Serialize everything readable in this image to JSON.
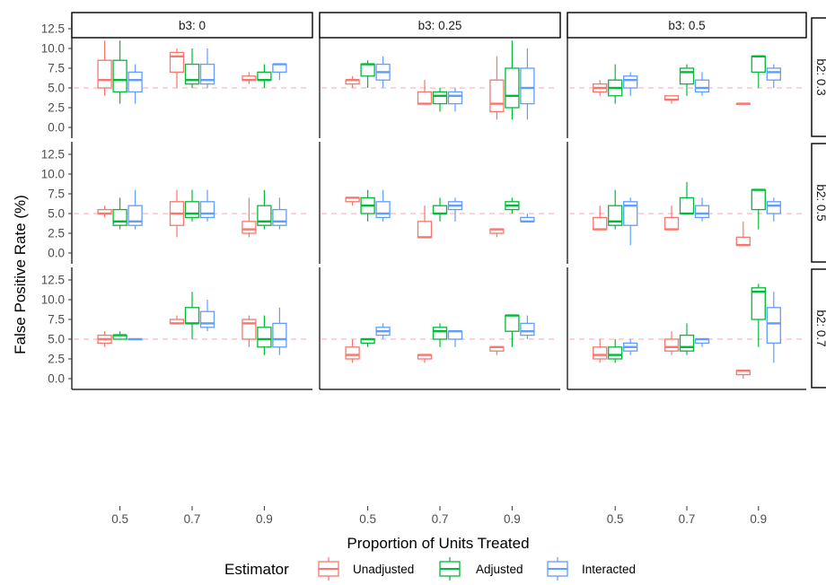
{
  "chart_data": {
    "type": "boxplot",
    "xlabel": "Proportion of Units Treated",
    "ylabel": "False Positive Rate (%)",
    "x_categories": [
      "0.5",
      "0.7",
      "0.9"
    ],
    "y_ticks": [
      "0.0",
      "2.5",
      "5.0",
      "7.5",
      "10.0",
      "12.5"
    ],
    "ylim": [
      0,
      12.5
    ],
    "reference_line": 5.0,
    "col_facets": [
      "b3: 0",
      "b3: 0.25",
      "b3: 0.5"
    ],
    "row_facets": [
      "b2: 0.3",
      "b2: 0.5",
      "b2: 0.7"
    ],
    "legend": {
      "title": "Estimator",
      "placement": "bottom",
      "items": [
        "Unadjusted",
        "Adjusted",
        "Interacted"
      ]
    },
    "colors": {
      "Unadjusted": "#F8766D",
      "Adjusted": "#00BA38",
      "Interacted": "#619CFF",
      "reference": "#FFB6C1"
    },
    "series": [
      "Unadjusted",
      "Adjusted",
      "Interacted"
    ],
    "boxes": [
      [
        [
          [
            [
              4,
              5,
              6,
              8.5,
              11
            ],
            [
              3,
              4.5,
              6,
              8.5,
              11
            ],
            [
              3,
              4.5,
              6,
              7,
              8
            ]
          ],
          [
            [
              5,
              7,
              9,
              9.5,
              10
            ],
            [
              5,
              5.5,
              6,
              8,
              10
            ],
            [
              5,
              5.5,
              6,
              8,
              10
            ]
          ],
          [
            [
              5.5,
              6,
              6,
              6.5,
              7
            ],
            [
              5,
              6,
              6,
              7,
              8
            ],
            [
              6,
              7,
              8,
              8,
              8
            ]
          ]
        ],
        [
          [
            [
              5,
              5.5,
              6,
              6,
              6.5
            ],
            [
              5,
              6.5,
              8,
              8,
              8.5
            ],
            [
              5,
              6,
              7,
              8,
              9
            ]
          ],
          [
            [
              3,
              3,
              3,
              4.5,
              6
            ],
            [
              2,
              3,
              4,
              4.5,
              5
            ],
            [
              2,
              3,
              4,
              4.5,
              5
            ]
          ],
          [
            [
              1,
              2,
              3,
              6,
              9
            ],
            [
              1,
              2.5,
              4,
              7.5,
              11
            ],
            [
              1,
              3,
              5,
              7.5,
              10
            ]
          ]
        ],
        [
          [
            [
              4,
              4.5,
              5,
              5.5,
              6
            ],
            [
              3,
              4,
              5,
              6,
              8
            ],
            [
              4,
              5,
              6,
              6.5,
              7
            ]
          ],
          [
            [
              3,
              3.5,
              3.5,
              4,
              4
            ],
            [
              4,
              5.5,
              7,
              7.5,
              8
            ],
            [
              4,
              4.5,
              5,
              6,
              7
            ]
          ],
          [
            [
              3,
              3,
              3,
              3,
              3
            ],
            [
              5,
              7,
              9,
              9,
              9
            ],
            [
              5,
              6,
              7,
              7.5,
              8
            ]
          ]
        ]
      ],
      [
        [
          [
            [
              4.5,
              5,
              5,
              5.5,
              6
            ],
            [
              3,
              3.5,
              4,
              5.5,
              7
            ],
            [
              3,
              3.5,
              4,
              6,
              8
            ]
          ],
          [
            [
              2,
              3.5,
              5,
              6.5,
              8
            ],
            [
              4,
              4.5,
              5,
              6.5,
              8
            ],
            [
              4,
              4.5,
              5,
              6.5,
              8
            ]
          ],
          [
            [
              2,
              2.5,
              3,
              4,
              7
            ],
            [
              3,
              3.5,
              4,
              6,
              8
            ],
            [
              3,
              3.5,
              4,
              5.5,
              7
            ]
          ]
        ],
        [
          [
            [
              6,
              6.5,
              7,
              7,
              7
            ],
            [
              4,
              5,
              6,
              7,
              8
            ],
            [
              4,
              4.5,
              5,
              6.5,
              8
            ]
          ],
          [
            [
              2,
              2,
              2,
              4,
              6
            ],
            [
              4,
              5,
              5,
              6,
              7
            ],
            [
              4,
              5.5,
              6,
              6.5,
              7
            ]
          ],
          [
            [
              2,
              2.5,
              3,
              3,
              3
            ],
            [
              5,
              5.5,
              6,
              6.5,
              7
            ],
            [
              4,
              4,
              4,
              4.5,
              5
            ]
          ]
        ],
        [
          [
            [
              3,
              3,
              3,
              4.5,
              6
            ],
            [
              3,
              3.5,
              4,
              6,
              8
            ],
            [
              1,
              3.5,
              6,
              6.5,
              7
            ]
          ],
          [
            [
              3,
              3,
              3,
              4.5,
              6
            ],
            [
              5,
              5,
              5,
              7,
              9
            ],
            [
              4,
              4.5,
              5,
              6,
              7
            ]
          ],
          [
            [
              1,
              1,
              1,
              2,
              4
            ],
            [
              3,
              5.5,
              8,
              8,
              8
            ],
            [
              4,
              5,
              6,
              6.5,
              7
            ]
          ]
        ]
      ],
      [
        [
          [
            [
              4,
              4.5,
              5,
              5.5,
              6
            ],
            [
              5,
              5,
              5.5,
              5.5,
              6
            ],
            [
              5,
              5,
              5,
              5,
              5
            ]
          ],
          [
            [
              7,
              7,
              7,
              7.5,
              8
            ],
            [
              5,
              7,
              7,
              9,
              11
            ],
            [
              6,
              6.5,
              7,
              8.5,
              10
            ]
          ],
          [
            [
              4,
              5,
              7,
              7.5,
              8
            ],
            [
              3,
              4,
              5,
              6.5,
              8
            ],
            [
              3,
              4,
              5,
              7,
              9
            ]
          ]
        ],
        [
          [
            [
              2,
              2.5,
              3,
              4,
              5
            ],
            [
              4,
              4.5,
              5,
              5,
              5
            ],
            [
              5,
              5.5,
              6,
              6.5,
              7
            ]
          ],
          [
            [
              2,
              2.5,
              3,
              3,
              3
            ],
            [
              4,
              5,
              6,
              6.5,
              7
            ],
            [
              4,
              5,
              6,
              6,
              6
            ]
          ],
          [
            [
              3,
              3.5,
              4,
              4,
              4
            ],
            [
              4,
              6,
              8,
              8,
              8
            ],
            [
              5,
              5.5,
              6,
              7,
              8
            ]
          ]
        ],
        [
          [
            [
              2,
              2.5,
              3,
              4,
              5
            ],
            [
              2,
              2.5,
              3,
              4,
              5
            ],
            [
              3,
              3.5,
              4,
              4.5,
              5
            ]
          ],
          [
            [
              3,
              3.5,
              4,
              5,
              6
            ],
            [
              3,
              3.5,
              4,
              5.5,
              7
            ],
            [
              4,
              4.5,
              5,
              5,
              5
            ]
          ],
          [
            [
              0,
              0.5,
              1,
              1,
              1
            ],
            [
              4,
              7.5,
              11,
              11.5,
              12
            ],
            [
              2,
              4.5,
              7,
              9,
              11
            ]
          ]
        ]
      ]
    ]
  }
}
